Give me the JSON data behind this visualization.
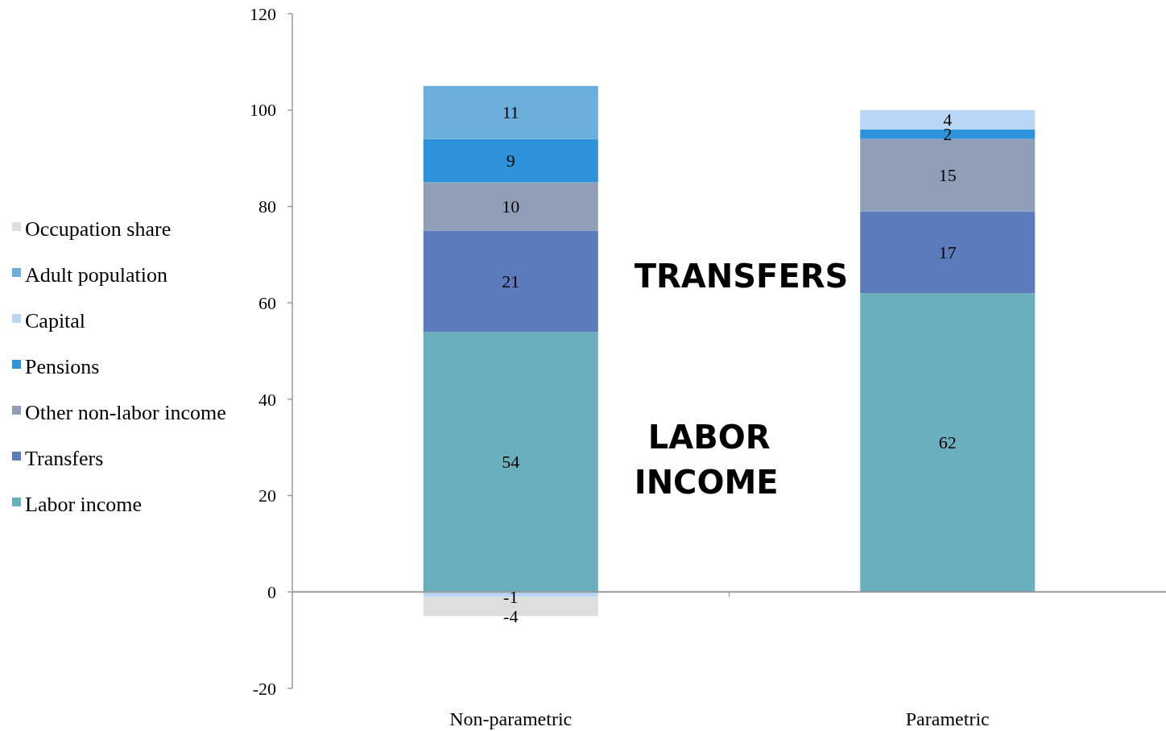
{
  "chart_data": {
    "type": "bar",
    "stacked": true,
    "categories": [
      "Non-parametric",
      "Parametric"
    ],
    "series": [
      {
        "name": "Labor income",
        "color": "#6aafbd",
        "values": [
          54,
          62
        ]
      },
      {
        "name": "Transfers",
        "color": "#5b7bbd",
        "values": [
          21,
          17
        ]
      },
      {
        "name": "Other non-labor income",
        "color": "#909fb7",
        "values": [
          10,
          15
        ]
      },
      {
        "name": "Pensions",
        "color": "#2f93dc",
        "values": [
          9,
          2
        ]
      },
      {
        "name": "Capital",
        "color": "#b9d6f7",
        "values": [
          -1,
          4
        ]
      },
      {
        "name": "Adult population",
        "color": "#6caedb",
        "values": [
          11,
          null
        ]
      },
      {
        "name": "Occupation share",
        "color": "#dedede",
        "values": [
          -4,
          null
        ]
      }
    ],
    "ylim": [
      -20,
      120
    ],
    "yticks": [
      -20,
      0,
      20,
      40,
      60,
      80,
      100,
      120
    ],
    "data_labels": true,
    "legend": "left",
    "annotations": [
      "TRANSFERS",
      "LABOR INCOME"
    ]
  }
}
